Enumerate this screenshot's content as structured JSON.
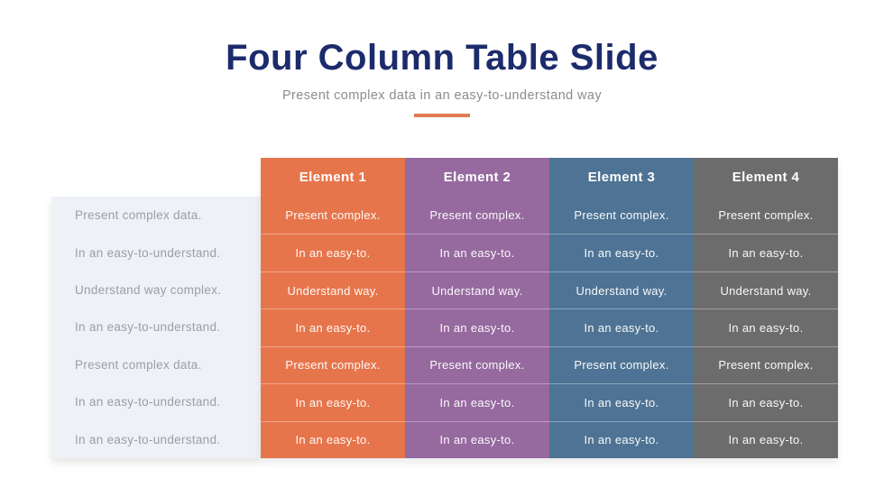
{
  "slide": {
    "title": "Four Column Table Slide",
    "subtitle": "Present complex data in an easy-to-understand way",
    "title_color": "#1c2b6b",
    "subtitle_color": "#8c8c8c",
    "accent_color": "#df7c53",
    "label_panel_color": "#eef1f5",
    "label_text_color": "#99a0a8"
  },
  "row_labels": [
    "Present complex data.",
    "In an easy-to-understand.",
    "Understand way complex.",
    "In an easy-to-understand.",
    "Present complex data.",
    "In an easy-to-understand.",
    "In an easy-to-understand."
  ],
  "columns": [
    {
      "header": "Element 1",
      "color": "#e7754c",
      "cells": [
        "Present complex.",
        "In an easy-to.",
        "Understand way.",
        "In an easy-to.",
        "Present complex.",
        "In an easy-to.",
        "In an easy-to."
      ]
    },
    {
      "header": "Element 2",
      "color": "#96699f",
      "cells": [
        "Present complex.",
        "In an easy-to.",
        "Understand way.",
        "In an easy-to.",
        "Present complex.",
        "In an easy-to.",
        "In an easy-to."
      ]
    },
    {
      "header": "Element 3",
      "color": "#4e7394",
      "cells": [
        "Present complex.",
        "In an easy-to.",
        "Understand way.",
        "In an easy-to.",
        "Present complex.",
        "In an easy-to.",
        "In an easy-to."
      ]
    },
    {
      "header": "Element 4",
      "color": "#6c6c6c",
      "cells": [
        "Present complex.",
        "In an easy-to.",
        "Understand way.",
        "In an easy-to.",
        "Present complex.",
        "In an easy-to.",
        "In an easy-to."
      ]
    }
  ]
}
